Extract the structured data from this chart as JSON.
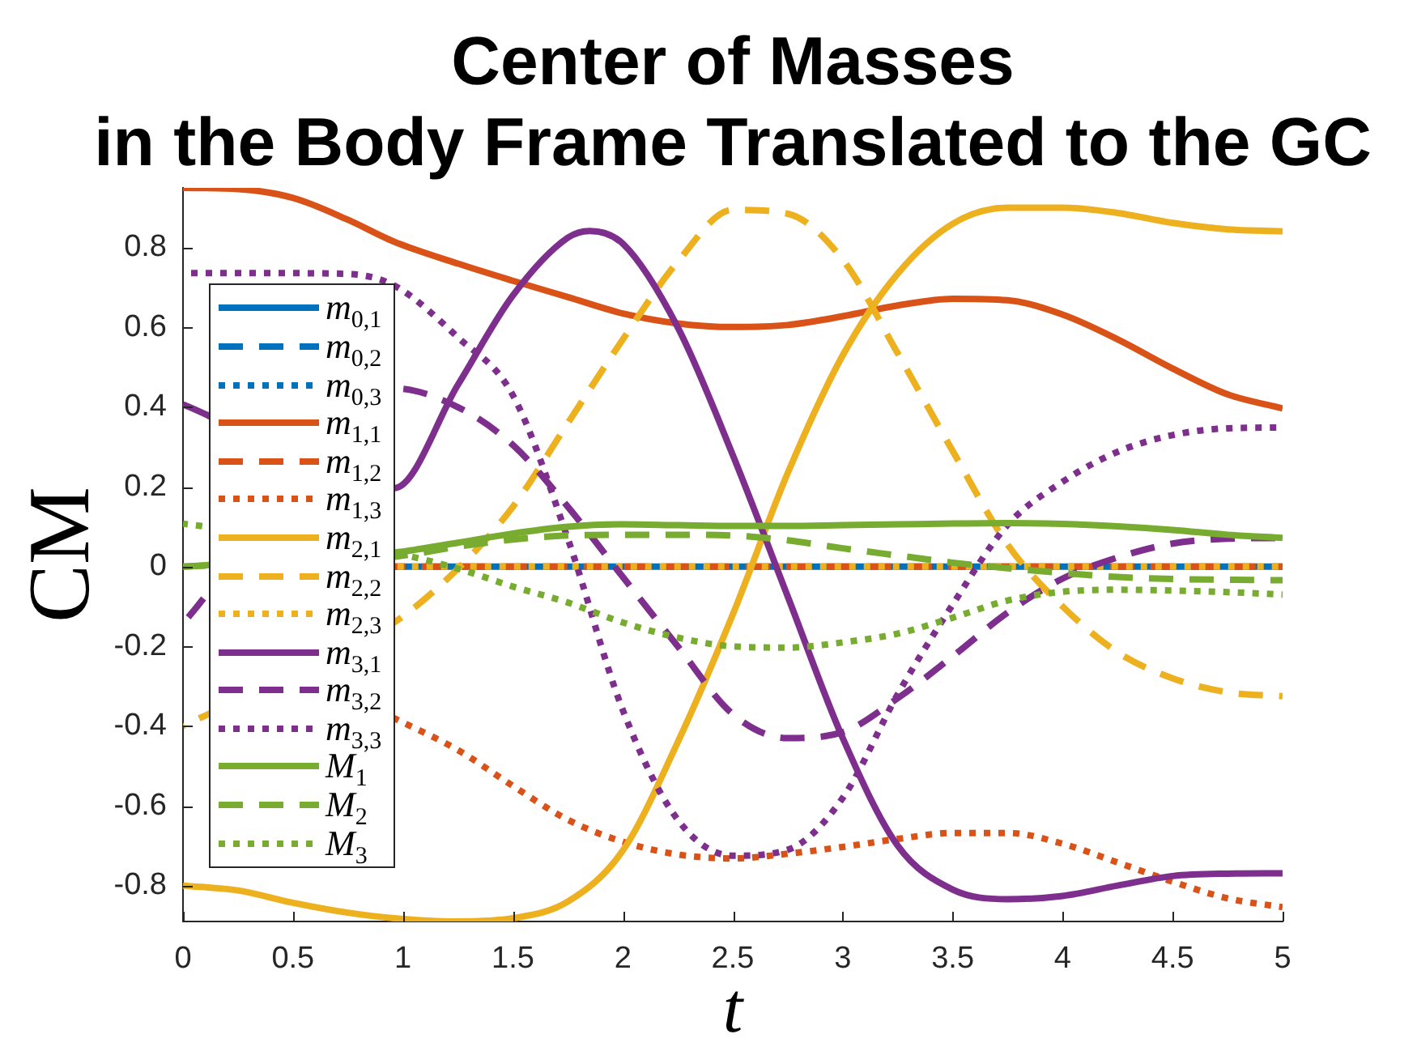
{
  "chart_data": {
    "type": "line",
    "title": "Center of Masses\nin the Body Frame Translated to the GC",
    "xlabel": "t",
    "ylabel": "CM",
    "x": [
      0,
      0.25,
      0.5,
      0.75,
      0.96,
      1.25,
      1.5,
      1.75,
      2,
      2.25,
      2.5,
      2.75,
      3,
      3.25,
      3.5,
      3.75,
      4,
      4.25,
      4.5,
      4.75,
      5
    ],
    "xlim": [
      0,
      5
    ],
    "xticks": [
      0,
      0.5,
      1,
      1.5,
      2,
      2.5,
      3,
      3.5,
      4,
      4.5,
      5
    ],
    "ylim": [
      -0.89,
      0.95
    ],
    "yticks": [
      -0.8,
      -0.6,
      -0.4,
      -0.2,
      0,
      0.2,
      0.4,
      0.6,
      0.8
    ],
    "legend": "left",
    "series": [
      {
        "name": "m$_{0,1}$",
        "color": "#0072bd",
        "line_style": "solid",
        "x": [
          0.96,
          2,
          3,
          4,
          5
        ],
        "values": [
          0,
          0,
          0,
          0,
          0
        ]
      },
      {
        "name": "m$_{0,2}$",
        "color": "#0072bd",
        "line_style": "dashed",
        "values": [
          null,
          null,
          null,
          null,
          null,
          null,
          null,
          null,
          null,
          null,
          null,
          null,
          null,
          null,
          null,
          null,
          null,
          null,
          null,
          null,
          null
        ]
      },
      {
        "name": "m$_{0,3}$",
        "color": "#0072bd",
        "line_style": "dotted",
        "values": [
          null,
          null,
          null,
          null,
          null,
          null,
          null,
          null,
          null,
          null,
          null,
          null,
          null,
          null,
          null,
          null,
          null,
          null,
          null,
          null,
          null
        ]
      },
      {
        "name": "m$_{1,1}$",
        "color": "#d95319",
        "line_style": "solid",
        "values": [
          0.95,
          0.947,
          0.925,
          0.87,
          0.815,
          0.76,
          0.717,
          0.676,
          0.635,
          0.61,
          0.601,
          0.606,
          0.628,
          0.655,
          0.672,
          0.668,
          0.632,
          0.57,
          0.497,
          0.432,
          0.397
        ]
      },
      {
        "name": "m$_{1,2}$",
        "color": "#d95319",
        "line_style": "dashed",
        "x": [
          0.96,
          2,
          3,
          4,
          5
        ],
        "values": [
          0,
          0,
          0,
          0,
          0
        ]
      },
      {
        "name": "m$_{1,3}$",
        "color": "#d95319",
        "line_style": "dotted",
        "values": [
          null,
          null,
          null,
          null,
          -0.38,
          -0.46,
          -0.55,
          -0.635,
          -0.69,
          -0.722,
          -0.732,
          -0.72,
          -0.703,
          -0.683,
          -0.668,
          -0.668,
          -0.695,
          -0.742,
          -0.79,
          -0.832,
          -0.854
        ]
      },
      {
        "name": "m$_{2,1}$",
        "color": "#edb120",
        "line_style": "solid",
        "values": [
          -0.8,
          -0.812,
          -0.843,
          -0.868,
          -0.882,
          -0.89,
          -0.882,
          -0.84,
          -0.712,
          -0.44,
          -0.12,
          0.235,
          0.53,
          0.735,
          0.86,
          0.9,
          0.9,
          0.887,
          0.862,
          0.846,
          0.841
        ]
      },
      {
        "name": "m$_{2,2}$",
        "color": "#edb120",
        "line_style": "dashed",
        "values": [
          -0.4,
          null,
          null,
          null,
          -0.14,
          -0.005,
          0.15,
          0.36,
          0.57,
          0.765,
          0.895,
          0.885,
          0.77,
          0.535,
          0.29,
          0.055,
          -0.1,
          -0.215,
          -0.28,
          -0.315,
          -0.325
        ]
      },
      {
        "name": "m$_{2,3}$",
        "color": "#edb120",
        "line_style": "dotted",
        "x": [
          0.96,
          2,
          3,
          4,
          5
        ],
        "values": [
          0,
          0,
          0,
          0,
          0
        ]
      },
      {
        "name": "m$_{3,1}$",
        "color": "#7e2f8e",
        "line_style": "solid",
        "x": [
          0,
          0.96,
          1.25,
          1.5,
          1.75,
          1.85,
          2,
          2.25,
          2.5,
          2.75,
          3,
          3.25,
          3.5,
          3.75,
          4,
          4.25,
          4.5,
          4.75,
          5
        ],
        "values": [
          0.407,
          0.197,
          0.456,
          0.68,
          0.825,
          0.842,
          0.81,
          0.6,
          0.28,
          -0.075,
          -0.43,
          -0.7,
          -0.81,
          -0.834,
          -0.826,
          -0.8,
          -0.776,
          -0.77,
          -0.769
        ]
      },
      {
        "name": "m$_{3,2}$",
        "color": "#7e2f8e",
        "line_style": "dashed",
        "values": [
          -0.142,
          null,
          null,
          null,
          0.447,
          0.4,
          0.305,
          0.15,
          -0.026,
          -0.2,
          -0.37,
          -0.43,
          -0.415,
          -0.33,
          -0.225,
          -0.115,
          -0.03,
          0.023,
          0.058,
          0.07,
          0.072
        ]
      },
      {
        "name": "m$_{3,3}$",
        "color": "#7e2f8e",
        "line_style": "dotted",
        "values": [
          0.736,
          0.736,
          0.736,
          0.734,
          0.705,
          0.575,
          0.43,
          0.07,
          -0.36,
          -0.635,
          -0.725,
          -0.71,
          -0.58,
          -0.32,
          -0.095,
          0.105,
          0.213,
          0.288,
          0.33,
          0.347,
          0.349
        ]
      },
      {
        "name": "M$_{1}$",
        "color": "#77ac30",
        "line_style": "solid",
        "values": [
          0,
          null,
          null,
          null,
          0.035,
          0.06,
          0.083,
          0.1,
          0.106,
          0.104,
          0.102,
          0.102,
          0.104,
          0.106,
          0.108,
          0.109,
          0.107,
          0.101,
          0.092,
          0.08,
          0.072
        ]
      },
      {
        "name": "M$_{2}$",
        "color": "#77ac30",
        "line_style": "dashed",
        "values": [
          0,
          null,
          null,
          null,
          0.025,
          0.05,
          0.068,
          0.078,
          0.08,
          0.08,
          0.078,
          0.066,
          0.046,
          0.028,
          0.01,
          -0.004,
          -0.016,
          -0.026,
          -0.031,
          -0.033,
          -0.034
        ]
      },
      {
        "name": "M$_{3}$",
        "color": "#77ac30",
        "line_style": "dotted",
        "values": [
          0.108,
          null,
          null,
          null,
          0.034,
          -0.005,
          -0.05,
          -0.09,
          -0.14,
          -0.178,
          -0.2,
          -0.203,
          -0.19,
          -0.168,
          -0.128,
          -0.085,
          -0.063,
          -0.058,
          -0.06,
          -0.064,
          -0.07
        ]
      }
    ]
  }
}
